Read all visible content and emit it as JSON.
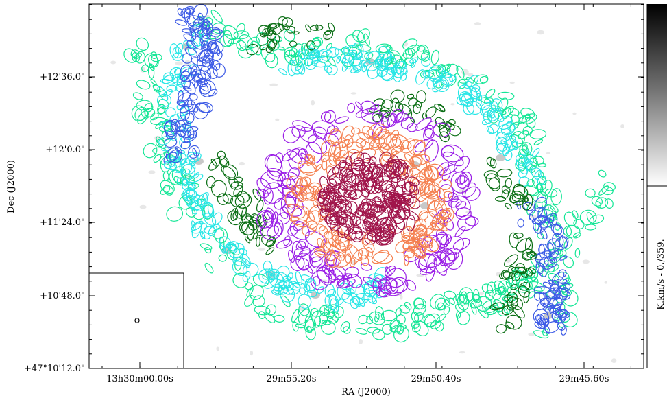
{
  "chart_data": {
    "type": "scatter",
    "title": "",
    "xlabel": "RA (J2000)",
    "ylabel": "Dec (J2000)",
    "x_ticks": [
      "13h30m00.00s",
      "29m55.20s",
      "29m50.40s",
      "29m45.60s"
    ],
    "y_ticks": [
      "+47°10'12.0\"",
      "+10'48.0\"",
      "+11'24.0\"",
      "+12'0.0\"",
      "+12'36.0\""
    ],
    "colorbar_label": "K.km/s - 0./359.",
    "colors": {
      "center": "#a0144a",
      "inner_disk": "#f58050",
      "ring": "#9a1ee6",
      "interarm": "#0a6e14",
      "arm_inner": "#28e6e6",
      "arm_outer": "#14e696",
      "arm_tips": "#3c5ae6"
    }
  }
}
